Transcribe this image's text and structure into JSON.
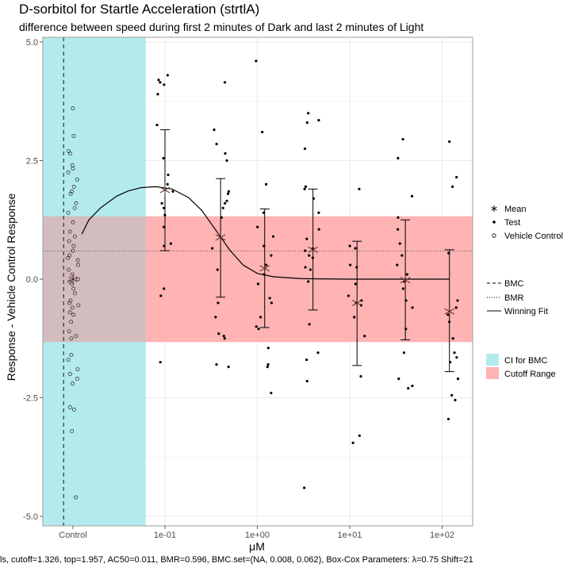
{
  "title": "D-sorbitol for Startle Acceleration (strtlA)",
  "subtitle": "difference between speed during first 2 minutes of Dark and last 2 minutes of Light",
  "caption": "ls, cutoff=1.326, top=1.957, AC50=0.011, BMR=0.596, BMC.set=(NA, 0.008, 0.062), Box-Cox Parameters: λ=0.75 Shift=21",
  "legend": {
    "mean": "Mean",
    "test": "Test",
    "vehicle_control": "Vehicle Control",
    "bmc": "BMC",
    "bmr": "BMR",
    "winning_fit": "Winning Fit",
    "ci_bmc": "CI for BMC",
    "cutoff_range": "Cutoff Range"
  },
  "colors": {
    "ci_bmc": "#b3eaee",
    "cutoff_range": "#ffb3b3",
    "overlap": "#d2bcbf",
    "mean": "#5a2a2a",
    "panel_border": "#9e9e9e",
    "grid": "#ebebeb"
  },
  "chart_data": {
    "type": "scatter",
    "xlabel": "μM",
    "ylabel": "Response - Vehicle Control Response",
    "ylim": [
      -5,
      5
    ],
    "x_scale": "log10",
    "x_ticks": [
      "Control",
      "1e-01",
      "1e+00",
      "1e+01",
      "1e+02"
    ],
    "y_ticks": [
      "5.0",
      "2.5",
      "0.0",
      "-2.5",
      "-5.0"
    ],
    "cutoff": 1.326,
    "bmr": 0.596,
    "bmc": 0.008,
    "bmc_ci": [
      0.008,
      0.062
    ],
    "vehicle_control": [
      3.6,
      3.02,
      2.7,
      2.65,
      2.4,
      2.33,
      2.25,
      2.1,
      1.95,
      1.85,
      1.8,
      1.6,
      1.5,
      1.4,
      1.2,
      1.0,
      0.9,
      0.8,
      0.7,
      0.6,
      0.5,
      0.45,
      0.4,
      0.3,
      0.2,
      0.1,
      0.0,
      -0.05,
      -0.1,
      -0.2,
      -0.3,
      -0.45,
      -0.5,
      -0.55,
      -0.6,
      -0.7,
      -0.75,
      -0.9,
      -1.1,
      -1.2,
      -1.25,
      -1.6,
      -1.7,
      -1.9,
      -2.0,
      -2.1,
      -2.2,
      -2.7,
      -2.75,
      -3.2,
      -4.6
    ],
    "test_groups": [
      {
        "conc": 0.1,
        "mean": 1.88,
        "sd_low": 0.6,
        "sd_high": 3.15,
        "values": [
          4.3,
          4.2,
          4.15,
          4.1,
          3.9,
          3.25,
          2.55,
          2.2,
          2.0,
          1.85,
          1.6,
          1.5,
          1.35,
          1.1,
          0.75,
          0.7,
          -0.2,
          -0.35,
          -1.75
        ]
      },
      {
        "conc": 0.4,
        "mean": 0.88,
        "sd_low": -0.38,
        "sd_high": 2.12,
        "values": [
          4.15,
          3.15,
          2.85,
          2.65,
          2.5,
          1.85,
          1.8,
          1.65,
          1.6,
          1.5,
          1.3,
          0.65,
          0.2,
          -0.5,
          -0.8,
          -1.15,
          -1.2,
          -1.25,
          -1.8,
          -1.85
        ]
      },
      {
        "conc": 1.2,
        "mean": 0.23,
        "sd_low": -1.02,
        "sd_high": 1.48,
        "values": [
          4.6,
          3.1,
          2.0,
          1.4,
          1.1,
          0.9,
          0.7,
          0.5,
          0.3,
          0.1,
          -0.1,
          -0.4,
          -0.5,
          -0.8,
          -1.0,
          -1.05,
          -1.45,
          -1.8,
          -1.85,
          -2.4
        ]
      },
      {
        "conc": 4.0,
        "mean": 0.62,
        "sd_low": -0.65,
        "sd_high": 1.9,
        "values": [
          3.5,
          3.35,
          3.3,
          2.75,
          1.95,
          1.9,
          1.7,
          1.4,
          1.05,
          0.85,
          0.65,
          0.6,
          0.5,
          0.45,
          0.25,
          0.2,
          -0.05,
          -0.95,
          -1.55,
          -1.7,
          -2.15,
          -4.4
        ]
      },
      {
        "conc": 12.0,
        "mean": -0.5,
        "sd_low": -1.82,
        "sd_high": 0.8,
        "values": [
          1.9,
          0.7,
          0.65,
          0.3,
          0.25,
          -0.1,
          -0.35,
          -0.45,
          -0.5,
          -0.55,
          -0.8,
          -1.2,
          -2.05,
          -3.3,
          -3.45
        ]
      },
      {
        "conc": 40.0,
        "mean": -0.02,
        "sd_low": -1.28,
        "sd_high": 1.25,
        "values": [
          2.95,
          2.55,
          1.75,
          1.3,
          1.05,
          0.75,
          0.5,
          0.3,
          0.1,
          -0.05,
          -0.2,
          -0.45,
          -0.6,
          -1.05,
          -1.55,
          -2.1,
          -2.25,
          -2.3
        ]
      },
      {
        "conc": 120.0,
        "mean": -0.68,
        "sd_low": -1.95,
        "sd_high": 0.62,
        "values": [
          2.9,
          2.15,
          1.95,
          0.55,
          -0.45,
          -0.6,
          -0.75,
          -0.9,
          -1.25,
          -1.55,
          -1.65,
          -1.75,
          -2.1,
          -2.45,
          -2.55,
          -2.95
        ]
      }
    ],
    "winning_fit": [
      [
        0.0126,
        0.95
      ],
      [
        0.015,
        1.25
      ],
      [
        0.02,
        1.5
      ],
      [
        0.03,
        1.75
      ],
      [
        0.04,
        1.86
      ],
      [
        0.055,
        1.93
      ],
      [
        0.08,
        1.95
      ],
      [
        0.12,
        1.9
      ],
      [
        0.18,
        1.72
      ],
      [
        0.25,
        1.45
      ],
      [
        0.35,
        1.05
      ],
      [
        0.5,
        0.62
      ],
      [
        0.7,
        0.3
      ],
      [
        1.0,
        0.12
      ],
      [
        1.5,
        0.05
      ],
      [
        3.0,
        0.01
      ],
      [
        10.0,
        0.0
      ],
      [
        120.0,
        0.0
      ]
    ]
  }
}
